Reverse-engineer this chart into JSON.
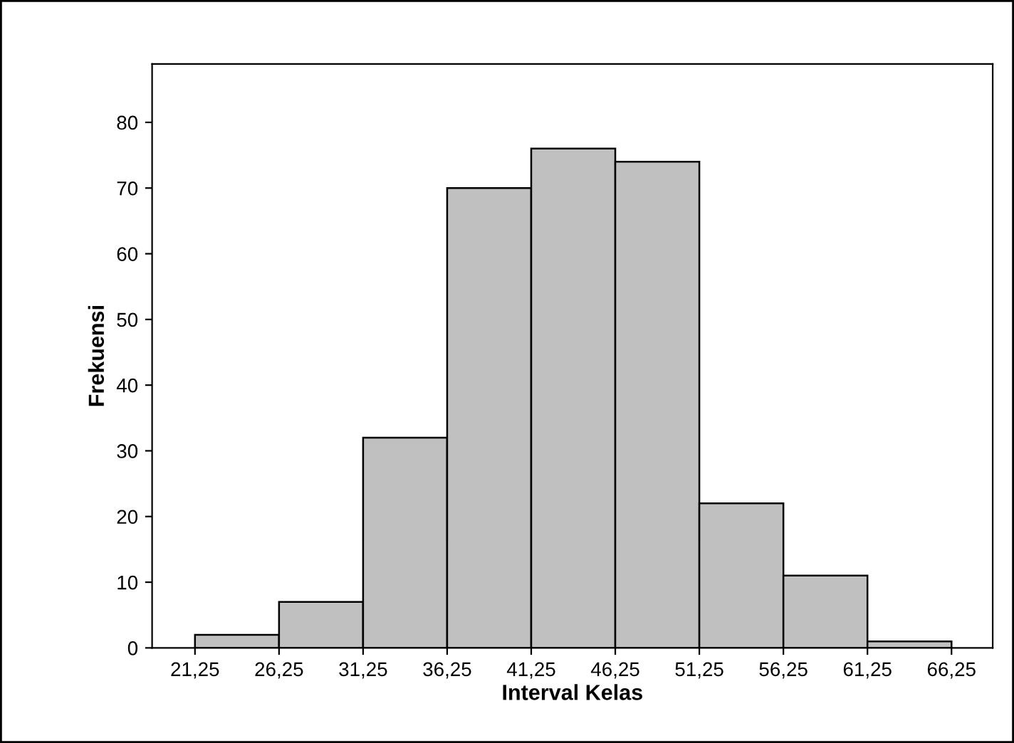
{
  "chart_data": {
    "type": "histogram",
    "xlabel": "Interval Kelas",
    "ylabel": "Frekuensi",
    "bins": [
      21.25,
      26.25,
      31.25,
      36.25,
      41.25,
      46.25,
      51.25,
      56.25,
      61.25,
      66.25
    ],
    "values": [
      2,
      7,
      32,
      70,
      76,
      74,
      22,
      11,
      1
    ],
    "color": "#c0c0c0",
    "xlim": [
      18.7,
      68.7
    ],
    "xticks": [
      {
        "value": 21.25,
        "label": "21,25"
      },
      {
        "value": 26.25,
        "label": "26,25"
      },
      {
        "value": 31.25,
        "label": "31,25"
      },
      {
        "value": 36.25,
        "label": "36,25"
      },
      {
        "value": 41.25,
        "label": "41,25"
      },
      {
        "value": 46.25,
        "label": "46,25"
      },
      {
        "value": 51.25,
        "label": "51,25"
      },
      {
        "value": 56.25,
        "label": "56,25"
      },
      {
        "value": 61.25,
        "label": "61,25"
      },
      {
        "value": 66.25,
        "label": "66,25"
      }
    ],
    "ylim": [
      0,
      88.9
    ],
    "yticks": [
      0,
      10,
      20,
      30,
      40,
      50,
      60,
      70,
      80
    ],
    "grid": false
  }
}
